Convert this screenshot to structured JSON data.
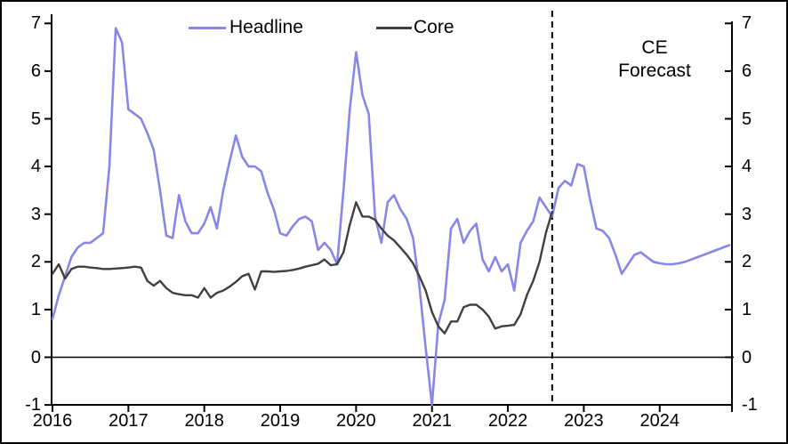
{
  "window": {
    "background": "#ffffff",
    "border_color": "#000000"
  },
  "legend": {
    "position": "top",
    "items": [
      {
        "label": "Headline",
        "color": "#8887e8"
      },
      {
        "label": "Core",
        "color": "#404040"
      }
    ]
  },
  "annotation": {
    "line1": "CE",
    "line2": "Forecast"
  },
  "chart_data": {
    "type": "line",
    "title": "",
    "xlabel": "",
    "ylabel": "",
    "x_start": "2016-01",
    "x_end": "2024-12",
    "frequency": "monthly",
    "x_tick_labels": [
      "2016",
      "2017",
      "2018",
      "2019",
      "2020",
      "2021",
      "2022",
      "2023",
      "2024"
    ],
    "y_ticks": [
      -1,
      0,
      1,
      2,
      3,
      4,
      5,
      6,
      7
    ],
    "ylim": [
      -1,
      7
    ],
    "dual_axis": true,
    "grid": false,
    "zero_line": true,
    "axis_color": "#000000",
    "forecast": {
      "label": "CE Forecast",
      "start": "2022-08",
      "start_index": 79,
      "marker": "dashed-vertical-line",
      "line_color": "#000000"
    },
    "series": [
      {
        "name": "Headline",
        "color": "#8887e8",
        "values": [
          0.8,
          1.3,
          1.7,
          2.1,
          2.3,
          2.4,
          2.4,
          2.5,
          2.6,
          4.0,
          6.9,
          6.6,
          5.2,
          5.1,
          5.0,
          4.7,
          4.35,
          3.5,
          2.55,
          2.5,
          3.4,
          2.85,
          2.6,
          2.6,
          2.8,
          3.15,
          2.7,
          3.5,
          4.1,
          4.65,
          4.2,
          4.0,
          4.0,
          3.9,
          3.45,
          3.1,
          2.6,
          2.55,
          2.75,
          2.9,
          2.95,
          2.85,
          2.25,
          2.4,
          2.25,
          1.95,
          3.5,
          5.2,
          6.4,
          5.5,
          5.1,
          2.95,
          2.4,
          3.25,
          3.4,
          3.1,
          2.9,
          2.5,
          1.5,
          0.2,
          -1.0,
          0.7,
          1.2,
          2.7,
          2.9,
          2.4,
          2.65,
          2.8,
          2.05,
          1.8,
          2.1,
          1.8,
          1.95,
          1.4,
          2.4,
          2.65,
          2.85,
          3.35,
          3.15,
          2.95,
          3.55,
          3.7,
          3.6,
          4.05,
          4.0,
          3.3,
          2.7,
          2.65,
          2.5,
          2.15,
          1.75,
          1.95,
          2.15,
          2.2,
          2.1,
          2.0,
          1.97,
          1.95,
          1.95,
          1.97,
          2.0,
          2.05,
          2.1,
          2.15,
          2.2,
          2.25,
          2.3,
          2.35
        ]
      },
      {
        "name": "Core",
        "color": "#404040",
        "values": [
          1.75,
          1.95,
          1.65,
          1.85,
          1.9,
          1.9,
          1.88,
          1.87,
          1.85,
          1.85,
          1.86,
          1.87,
          1.88,
          1.9,
          1.88,
          1.6,
          1.5,
          1.6,
          1.45,
          1.35,
          1.32,
          1.3,
          1.3,
          1.25,
          1.45,
          1.25,
          1.35,
          1.4,
          1.48,
          1.58,
          1.7,
          1.75,
          1.42,
          1.8,
          1.8,
          1.79,
          1.8,
          1.81,
          1.83,
          1.86,
          1.9,
          1.93,
          1.96,
          2.05,
          1.93,
          1.95,
          2.2,
          2.78,
          3.25,
          2.95,
          2.95,
          2.88,
          2.7,
          2.55,
          2.45,
          2.3,
          2.15,
          1.97,
          1.7,
          1.4,
          0.95,
          0.65,
          0.5,
          0.75,
          0.75,
          1.05,
          1.1,
          1.1,
          1.0,
          0.85,
          0.6,
          0.65,
          0.66,
          0.68,
          0.9,
          1.3,
          1.6,
          2.0,
          2.6,
          3.05
        ]
      }
    ]
  }
}
